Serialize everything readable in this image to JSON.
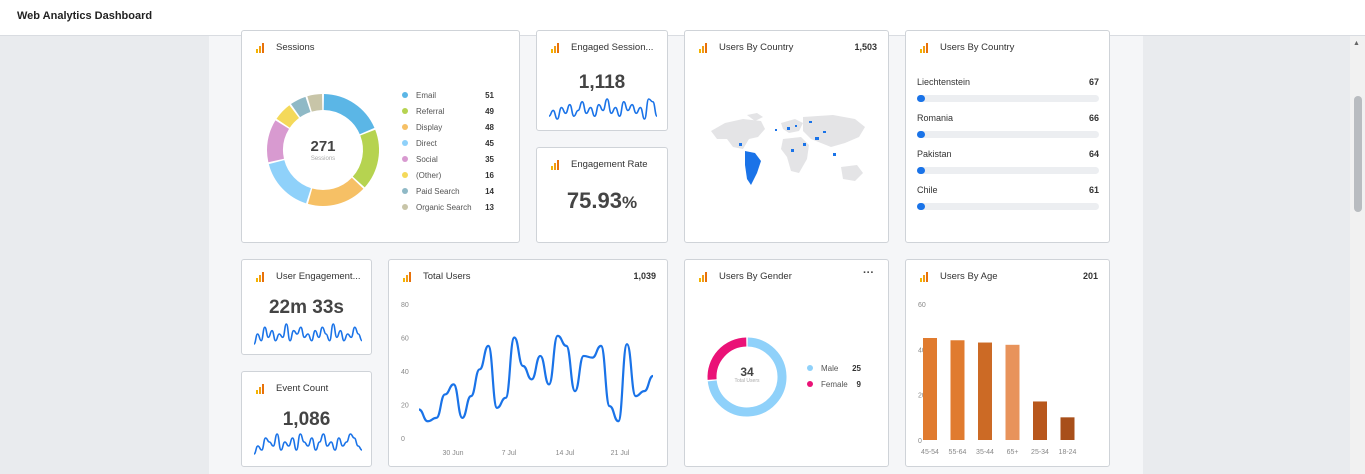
{
  "app": {
    "title": "Web Analytics Dashboard"
  },
  "colors": {
    "accent": "#1a73e8",
    "line": "#1a73e8",
    "icon": "#f29d12"
  },
  "sessions": {
    "title": "Sessions",
    "total": "271",
    "total_label": "Sessions",
    "legend": [
      {
        "label": "Email",
        "value": "51",
        "color": "#5bb6e6"
      },
      {
        "label": "Referral",
        "value": "49",
        "color": "#b6d350"
      },
      {
        "label": "Display",
        "value": "48",
        "color": "#f6c065"
      },
      {
        "label": "Direct",
        "value": "45",
        "color": "#8fd1fa"
      },
      {
        "label": "Social",
        "value": "35",
        "color": "#d89ad0"
      },
      {
        "label": "(Other)",
        "value": "16",
        "color": "#f4d95a"
      },
      {
        "label": "Paid Search",
        "value": "14",
        "color": "#8fb9c6"
      },
      {
        "label": "Organic Search",
        "value": "13",
        "color": "#c8c5a8"
      }
    ]
  },
  "engaged_sessions": {
    "title": "Engaged Session...",
    "value": "1,118"
  },
  "engagement_rate": {
    "title": "Engagement Rate",
    "value": "75.93",
    "unit": "%"
  },
  "users_by_country_map": {
    "title": "Users By Country",
    "total": "1,503"
  },
  "users_by_country_list": {
    "title": "Users By Country",
    "rows": [
      {
        "country": "Liechtenstein",
        "value": "67",
        "fill": 0.04
      },
      {
        "country": "Romania",
        "value": "66",
        "fill": 0.04
      },
      {
        "country": "Pakistan",
        "value": "64",
        "fill": 0.04
      },
      {
        "country": "Chile",
        "value": "61",
        "fill": 0.04
      }
    ]
  },
  "user_engagement": {
    "title": "User Engagement...",
    "value": "22m 33s"
  },
  "event_count": {
    "title": "Event Count",
    "value": "1,086"
  },
  "total_users": {
    "title": "Total Users",
    "total": "1,039",
    "y_ticks": [
      "80",
      "60",
      "40",
      "20",
      "0"
    ],
    "x_ticks": [
      "30 Jun",
      "7 Jul",
      "14 Jul",
      "21 Jul"
    ]
  },
  "users_by_gender": {
    "title": "Users By Gender",
    "menu_icon": "more-horizontal-icon",
    "total": "34",
    "total_label": "Total Users",
    "legend": [
      {
        "label": "Male",
        "value": "25",
        "color": "#8fd1fa"
      },
      {
        "label": "Female",
        "value": "9",
        "color": "#ea1277"
      }
    ]
  },
  "users_by_age": {
    "title": "Users By Age",
    "total": "201",
    "y_ticks": [
      "60",
      "40",
      "20",
      "0"
    ]
  },
  "chart_data": [
    {
      "type": "pie",
      "title": "Sessions",
      "categories": [
        "Email",
        "Referral",
        "Display",
        "Direct",
        "Social",
        "(Other)",
        "Paid Search",
        "Organic Search"
      ],
      "values": [
        51,
        49,
        48,
        45,
        35,
        16,
        14,
        13
      ]
    },
    {
      "type": "line",
      "title": "Total Users",
      "x_ticks": [
        "30 Jun",
        "7 Jul",
        "14 Jul",
        "21 Jul"
      ],
      "ylim": [
        0,
        80
      ],
      "values": [
        17,
        10,
        12,
        26,
        32,
        12,
        25,
        41,
        55,
        18,
        24,
        60,
        43,
        35,
        49,
        32,
        61,
        55,
        28,
        49,
        48,
        55,
        19,
        10,
        56,
        25,
        28,
        37
      ]
    },
    {
      "type": "line",
      "title": "Engaged Session...",
      "values": [
        3,
        5,
        2,
        6,
        4,
        7,
        3,
        5,
        8,
        4,
        6,
        3,
        7,
        5,
        9,
        4,
        6,
        3,
        8,
        5,
        7,
        4,
        6,
        2,
        9,
        8,
        3
      ]
    },
    {
      "type": "line",
      "title": "User Engagement...",
      "values": [
        2,
        5,
        3,
        7,
        4,
        6,
        3,
        5,
        4,
        8,
        3,
        6,
        5,
        7,
        4,
        5,
        3,
        6,
        4,
        7,
        5,
        3,
        8,
        4,
        6,
        3,
        5,
        4,
        7,
        5,
        3
      ]
    },
    {
      "type": "line",
      "title": "Event Count",
      "values": [
        1,
        3,
        2,
        5,
        4,
        3,
        6,
        2,
        4,
        3,
        5,
        2,
        6,
        4,
        3,
        5,
        2,
        4,
        6,
        3,
        4,
        2,
        5,
        3,
        4,
        6,
        5,
        3,
        2
      ]
    },
    {
      "type": "pie",
      "title": "Users By Gender",
      "categories": [
        "Male",
        "Female"
      ],
      "values": [
        25,
        9
      ]
    },
    {
      "type": "bar",
      "title": "Users By Age",
      "categories": [
        "45-54",
        "55-64",
        "35-44",
        "65+",
        "25-34",
        "18-24"
      ],
      "values": [
        45,
        44,
        43,
        42,
        17,
        10
      ],
      "colors": [
        "#e07b2f",
        "#e07b2f",
        "#cc6a25",
        "#e8935b",
        "#b8571c",
        "#a84f1a"
      ],
      "ylim": [
        0,
        60
      ]
    }
  ]
}
